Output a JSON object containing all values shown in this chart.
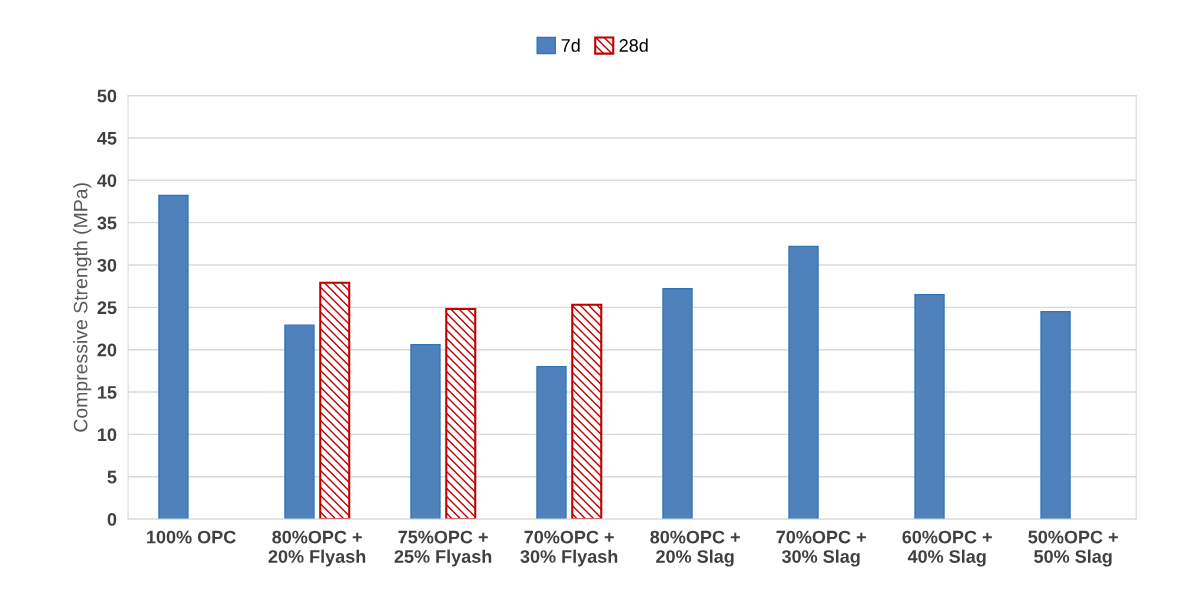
{
  "chart_data": {
    "type": "bar",
    "ylabel": "Compressive Strength (MPa)",
    "categories": [
      "100% OPC",
      "80%OPC +\n20% Flyash",
      "75%OPC +\n25% Flyash",
      "70%OPC +\n30% Flyash",
      "80%OPC +\n20% Slag",
      "70%OPC +\n30% Slag",
      "60%OPC +\n40% Slag",
      "50%OPC +\n50% Slag"
    ],
    "series": [
      {
        "name": "7d",
        "color": "#4f81bd",
        "values": [
          38.2,
          22.9,
          20.6,
          18.0,
          27.2,
          32.2,
          26.5,
          24.5
        ]
      },
      {
        "name": "28d",
        "color": "#c00000",
        "values": [
          null,
          27.9,
          24.8,
          25.3,
          null,
          null,
          null,
          null
        ]
      }
    ],
    "ylim": [
      0,
      50
    ],
    "yticks": [
      0,
      5,
      10,
      15,
      20,
      25,
      30,
      35,
      40,
      45,
      50
    ],
    "grid": "y",
    "legend": "top"
  }
}
